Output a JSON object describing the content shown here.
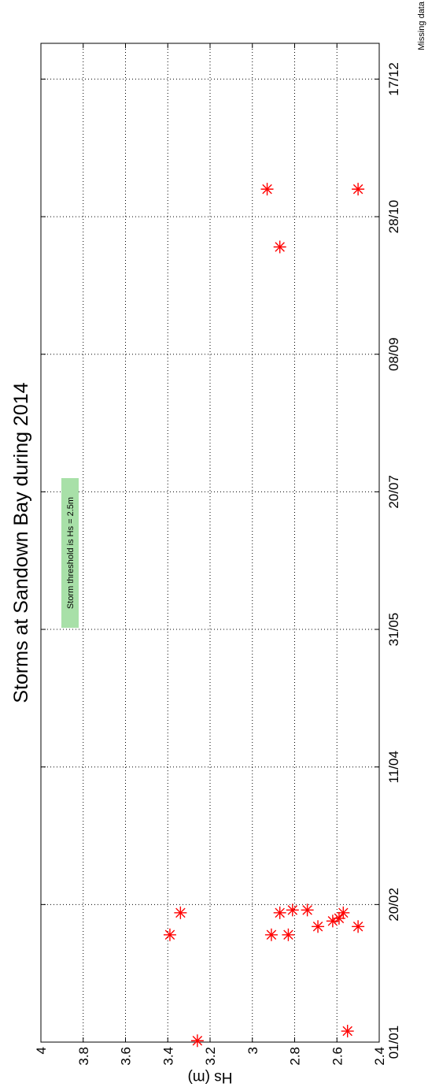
{
  "chart_data": {
    "type": "scatter",
    "title": "Storms at Sandown Bay during 2014",
    "ylabel": "Hs (m)",
    "xlabel": "",
    "ylim": [
      2.4,
      4.0
    ],
    "yticks": [
      "2.4",
      "2.6",
      "2.8",
      "3",
      "3.2",
      "3.4",
      "3.6",
      "3.8",
      "4"
    ],
    "xticks": [
      {
        "label": "01/01",
        "day": 0
      },
      {
        "label": "20/02",
        "day": 50
      },
      {
        "label": "11/04",
        "day": 100
      },
      {
        "label": "31/05",
        "day": 150
      },
      {
        "label": "20/07",
        "day": 200
      },
      {
        "label": "08/09",
        "day": 250
      },
      {
        "label": "28/10",
        "day": 300
      },
      {
        "label": "17/12",
        "day": 350
      }
    ],
    "xlim_days": [
      0,
      363
    ],
    "grid": true,
    "annotation": "Storm threshold is Hs = 2.5m",
    "missing_data_label": "Missing data",
    "series": [
      {
        "marker": "asterisk",
        "color": "#ff0000",
        "points": [
          {
            "day": 0.5,
            "hs": 3.26
          },
          {
            "day": 4,
            "hs": 2.55
          },
          {
            "day": 39,
            "hs": 3.39
          },
          {
            "day": 39,
            "hs": 2.91
          },
          {
            "day": 39,
            "hs": 2.83
          },
          {
            "day": 42,
            "hs": 2.69
          },
          {
            "day": 42,
            "hs": 2.5
          },
          {
            "day": 44,
            "hs": 2.62
          },
          {
            "day": 45,
            "hs": 2.59
          },
          {
            "day": 47,
            "hs": 3.34
          },
          {
            "day": 47,
            "hs": 2.87
          },
          {
            "day": 47,
            "hs": 2.57
          },
          {
            "day": 48,
            "hs": 2.81
          },
          {
            "day": 48,
            "hs": 2.74
          },
          {
            "day": 289,
            "hs": 2.87
          },
          {
            "day": 310,
            "hs": 2.93
          },
          {
            "day": 310,
            "hs": 2.5
          }
        ]
      }
    ]
  }
}
